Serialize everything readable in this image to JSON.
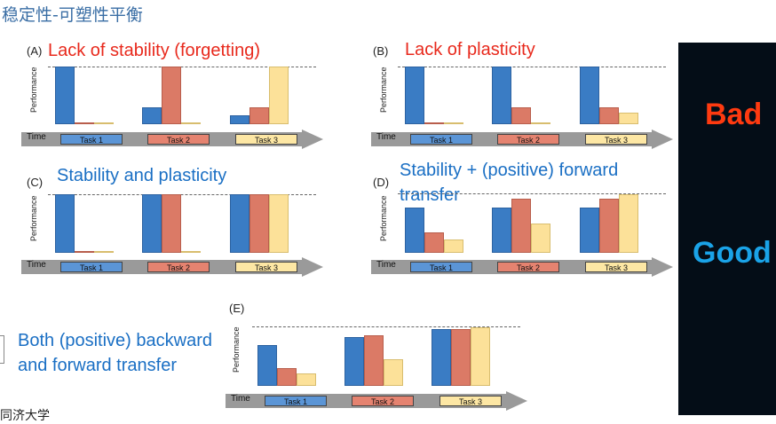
{
  "title": "稳定性-可塑性平衡",
  "panels": {
    "A": {
      "letter": "(A)",
      "caption": "Lack of stability (forgetting)"
    },
    "B": {
      "letter": "(B)",
      "caption": "Lack of plasticity"
    },
    "C": {
      "letter": "(C)",
      "caption": "Stability and  plasticity"
    },
    "D": {
      "letter": "(D)",
      "caption_line1": "Stability + (positive) forward",
      "caption_line2": "transfer"
    },
    "E": {
      "letter": "(E)",
      "caption_line1": "Both (positive) backward",
      "caption_line2": "and  forward transfer"
    }
  },
  "axis_label": "Performance",
  "timeline": {
    "time_label": "Time",
    "tasks": [
      "Task 1",
      "Task 2",
      "Task 3"
    ]
  },
  "side_panel": {
    "bad": "Bad",
    "good": "Good"
  },
  "footer_logo": "同济大学",
  "colors": {
    "task1": "#3a7cc4",
    "task2": "#db7a66",
    "task3": "#fce199",
    "side_bg": "#040d17",
    "bad": "#ff3a10",
    "good": "#1aa3e8",
    "caption_red": "#e8291c",
    "caption_blue": "#1a6fc4"
  },
  "chart_data": [
    {
      "panel": "A",
      "type": "bar",
      "categories": [
        "Task 1",
        "Task 2",
        "Task 3"
      ],
      "series": [
        {
          "values": [
            1.0,
            0.0,
            0.0
          ]
        },
        {
          "values": [
            0.3,
            1.0,
            0.02
          ]
        },
        {
          "values": [
            0.15,
            0.3,
            1.0
          ]
        }
      ],
      "ylim": [
        0,
        1
      ]
    },
    {
      "panel": "B",
      "type": "bar",
      "categories": [
        "Task 1",
        "Task 2",
        "Task 3"
      ],
      "series": [
        {
          "values": [
            1.0,
            0.03,
            0.03
          ]
        },
        {
          "values": [
            1.0,
            0.3,
            0.03
          ]
        },
        {
          "values": [
            1.0,
            0.3,
            0.2
          ]
        }
      ],
      "ylim": [
        0,
        1
      ]
    },
    {
      "panel": "C",
      "type": "bar",
      "categories": [
        "Task 1",
        "Task 2",
        "Task 3"
      ],
      "series": [
        {
          "values": [
            1.0,
            0.03,
            0.03
          ]
        },
        {
          "values": [
            1.0,
            1.0,
            0.03
          ]
        },
        {
          "values": [
            1.0,
            1.0,
            1.0
          ]
        }
      ],
      "ylim": [
        0,
        1
      ]
    },
    {
      "panel": "D",
      "type": "bar",
      "categories": [
        "Task 1",
        "Task 2",
        "Task 3"
      ],
      "series": [
        {
          "values": [
            1.0,
            0.45,
            0.3
          ]
        },
        {
          "values": [
            1.0,
            1.2,
            0.65
          ]
        },
        {
          "values": [
            1.0,
            1.2,
            1.3
          ]
        }
      ],
      "ylim": [
        0,
        1.3
      ]
    },
    {
      "panel": "E",
      "type": "bar",
      "categories": [
        "Task 1",
        "Task 2",
        "Task 3"
      ],
      "series": [
        {
          "values": [
            1.0,
            0.45,
            0.3
          ]
        },
        {
          "values": [
            1.2,
            1.25,
            0.65
          ]
        },
        {
          "values": [
            1.4,
            1.4,
            1.45
          ]
        }
      ],
      "ylim": [
        0,
        1.45
      ]
    }
  ]
}
